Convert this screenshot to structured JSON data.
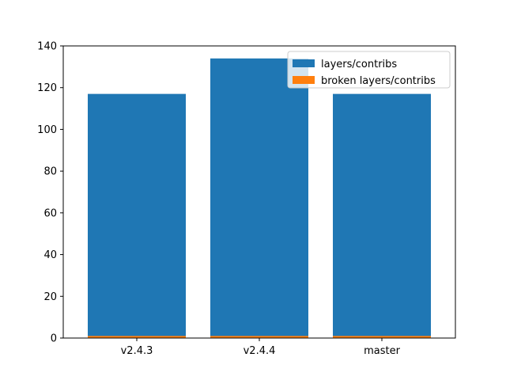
{
  "chart_data": {
    "type": "bar",
    "categories": [
      "v2.4.3",
      "v2.4.4",
      "master"
    ],
    "series": [
      {
        "name": "layers/contribs",
        "values": [
          117,
          134,
          117
        ],
        "color": "#1f77b4"
      },
      {
        "name": "broken layers/contribs",
        "values": [
          1,
          1,
          1
        ],
        "color": "#ff7f0e"
      }
    ],
    "ylim": [
      0,
      140
    ],
    "yticks": [
      0,
      20,
      40,
      60,
      80,
      100,
      120,
      140
    ],
    "title": "",
    "xlabel": "",
    "ylabel": "",
    "grid": false,
    "legend_position": "top-right",
    "stacking": "overlaid"
  }
}
